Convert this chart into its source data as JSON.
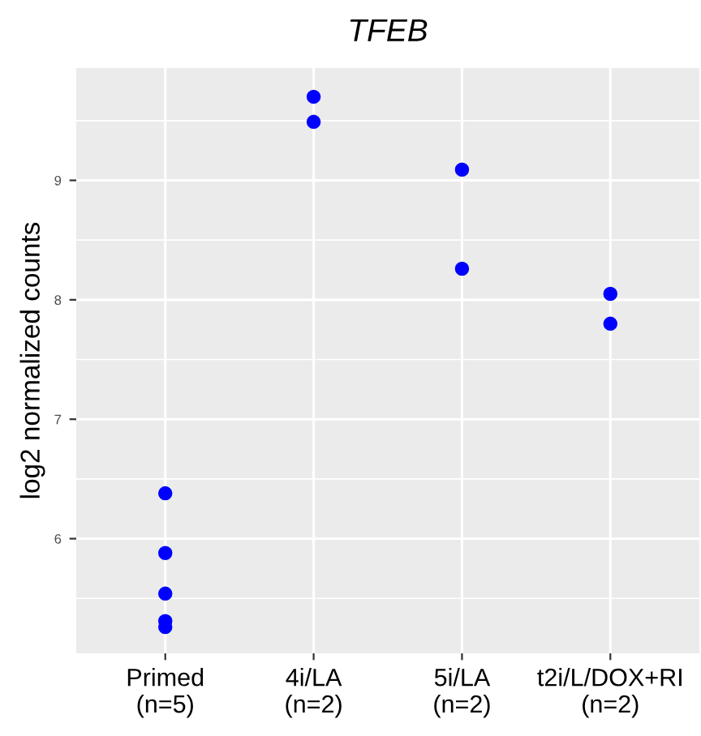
{
  "chart_data": {
    "type": "scatter",
    "title": "TFEB",
    "ylabel": "log2 normalized counts",
    "categories": [
      "Primed\n(n=5)",
      "4i/LA\n(n=2)",
      "5i/LA\n(n=2)",
      "t2i/L/DOX+RI\n(n=2)"
    ],
    "series": [
      {
        "color": "#0000ff",
        "x": [
          "Primed\n(n=5)",
          "Primed\n(n=5)",
          "Primed\n(n=5)",
          "Primed\n(n=5)",
          "Primed\n(n=5)",
          "4i/LA\n(n=2)",
          "4i/LA\n(n=2)",
          "5i/LA\n(n=2)",
          "5i/LA\n(n=2)",
          "t2i/L/DOX+RI\n(n=2)",
          "t2i/L/DOX+RI\n(n=2)"
        ],
        "values": [
          6.38,
          5.88,
          5.54,
          5.31,
          5.26,
          9.49,
          9.7,
          9.09,
          8.26,
          8.05,
          7.8
        ]
      }
    ],
    "ylim": [
      5.04,
      9.94
    ],
    "yticks": [
      6,
      7,
      8,
      9
    ],
    "grid": true,
    "marker": "circle",
    "legend": false
  }
}
